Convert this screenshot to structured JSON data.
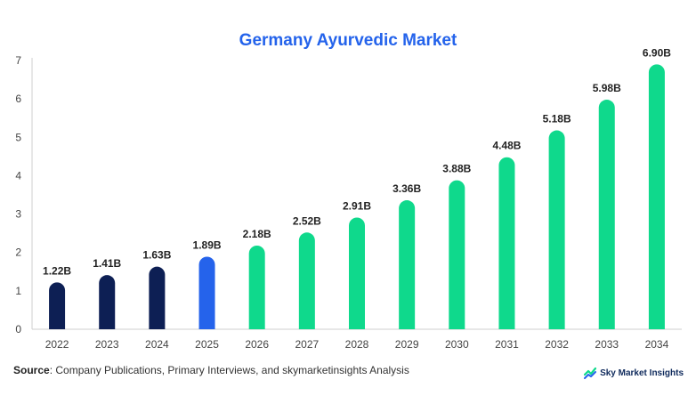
{
  "chart_data": {
    "type": "bar",
    "title": "Germany Ayurvedic Market",
    "categories": [
      "2022",
      "2023",
      "2024",
      "2025",
      "2026",
      "2027",
      "2028",
      "2029",
      "2030",
      "2031",
      "2032",
      "2033",
      "2034"
    ],
    "values": [
      1.22,
      1.41,
      1.63,
      1.89,
      2.18,
      2.52,
      2.91,
      3.36,
      3.88,
      4.48,
      5.18,
      5.98,
      6.9
    ],
    "data_labels": [
      "1.22B",
      "1.41B",
      "1.63B",
      "1.89B",
      "2.18B",
      "2.52B",
      "2.91B",
      "3.36B",
      "3.88B",
      "4.48B",
      "5.18B",
      "5.98B",
      "6.90B"
    ],
    "y_ticks": [
      0,
      1,
      2,
      3,
      4,
      5,
      6,
      7
    ],
    "ylim": [
      0,
      7
    ],
    "xlabel": "",
    "ylabel": "",
    "bar_colors": [
      "#0d1f54",
      "#0d1f54",
      "#0d1f54",
      "#2563eb",
      "#0fd98c",
      "#0fd98c",
      "#0fd98c",
      "#0fd98c",
      "#0fd98c",
      "#0fd98c",
      "#0fd98c",
      "#0fd98c",
      "#0fd98c"
    ],
    "grid": false
  },
  "source": {
    "prefix": "Source",
    "text": ": Company Publications, Primary Interviews, and skymarketinsights Analysis"
  },
  "brand": {
    "name": "Sky Market Insights",
    "icon": "brand-logo-icon"
  },
  "colors": {
    "title": "#2463eb",
    "historical": "#0d1f54",
    "current": "#2563eb",
    "forecast": "#0fd98c"
  }
}
